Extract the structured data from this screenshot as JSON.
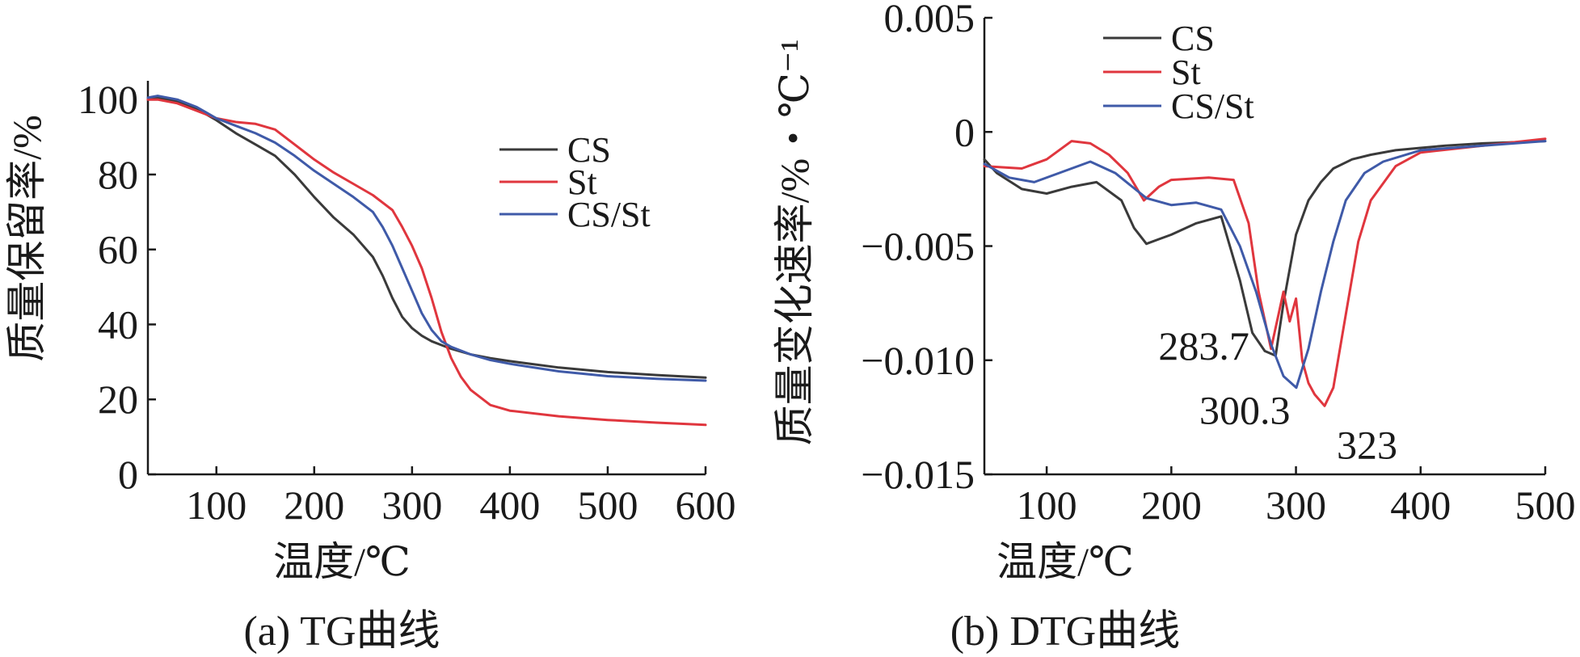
{
  "colors": {
    "CS": "#3a3a3a",
    "St": "#e0363e",
    "CS/St": "#3f5aa8"
  },
  "chart_data": [
    {
      "type": "line",
      "caption": "(a) TG曲线",
      "xlabel": "温度/℃",
      "ylabel": "质量保留率/%",
      "xlim": [
        30,
        600
      ],
      "ylim": [
        0,
        105
      ],
      "xticks": [
        100,
        200,
        300,
        400,
        500,
        600
      ],
      "yticks": [
        0,
        20,
        40,
        60,
        80,
        100
      ],
      "legend": "right",
      "series": [
        {
          "name": "CS",
          "color_key": "CS",
          "x": [
            30,
            40,
            60,
            80,
            100,
            120,
            140,
            160,
            180,
            200,
            220,
            240,
            260,
            270,
            280,
            290,
            300,
            310,
            320,
            330,
            340,
            360,
            380,
            400,
            450,
            500,
            550,
            600
          ],
          "y": [
            100,
            100.5,
            99.5,
            97.5,
            94.5,
            91,
            88,
            85,
            80,
            74,
            68.5,
            64,
            58,
            53,
            47,
            42,
            39,
            37,
            35.5,
            34.5,
            33.5,
            32,
            31,
            30.2,
            28.5,
            27.3,
            26.5,
            25.8
          ]
        },
        {
          "name": "St",
          "color_key": "St",
          "x": [
            30,
            40,
            60,
            80,
            100,
            120,
            140,
            160,
            180,
            200,
            220,
            240,
            260,
            280,
            290,
            300,
            310,
            320,
            330,
            340,
            350,
            360,
            380,
            400,
            450,
            500,
            550,
            600
          ],
          "y": [
            100,
            100,
            99,
            97,
            95,
            94,
            93.5,
            92,
            88,
            84,
            80.5,
            77.5,
            74.5,
            70.5,
            66,
            61,
            55,
            47,
            38,
            31,
            26,
            22.5,
            18.5,
            17,
            15.5,
            14.5,
            13.8,
            13.2
          ]
        },
        {
          "name": "CS/St",
          "color_key": "CS/St",
          "x": [
            30,
            40,
            60,
            80,
            100,
            120,
            140,
            160,
            180,
            200,
            220,
            240,
            260,
            270,
            280,
            290,
            300,
            310,
            320,
            330,
            340,
            360,
            380,
            400,
            450,
            500,
            550,
            600
          ],
          "y": [
            100.5,
            101,
            100,
            98,
            95,
            93,
            91,
            88.5,
            85,
            81,
            77.5,
            74,
            70,
            66,
            61,
            55,
            49,
            43,
            38.5,
            35.5,
            34,
            32,
            30.5,
            29.5,
            27.5,
            26.2,
            25.5,
            25
          ]
        }
      ]
    },
    {
      "type": "line",
      "caption": "(b) DTG曲线",
      "xlabel": "温度/℃",
      "ylabel": "质量变化速率/%・℃⁻¹",
      "xlim": [
        50,
        500
      ],
      "ylim": [
        -0.015,
        0.005
      ],
      "xticks": [
        100,
        200,
        300,
        400,
        500
      ],
      "yticks": [
        0.005,
        0,
        -0.005,
        -0.01,
        -0.015
      ],
      "ytick_labels": [
        "0.005",
        "0",
        "−0.005",
        "−0.010",
        "−0.015"
      ],
      "legend": "top-left",
      "annotations": [
        {
          "text": "283.7",
          "x": 283.7,
          "y": -0.0098
        },
        {
          "text": "300.3",
          "x": 300.3,
          "y": -0.0112
        },
        {
          "text": "323",
          "x": 323,
          "y": -0.012
        }
      ],
      "series": [
        {
          "name": "CS",
          "color_key": "CS",
          "x": [
            50,
            60,
            80,
            100,
            120,
            140,
            160,
            170,
            180,
            190,
            200,
            220,
            240,
            255,
            265,
            275,
            283.7,
            290,
            300,
            310,
            320,
            330,
            345,
            360,
            380,
            400,
            420,
            450,
            500
          ],
          "y": [
            -0.0012,
            -0.0018,
            -0.0025,
            -0.0027,
            -0.0024,
            -0.0022,
            -0.003,
            -0.0042,
            -0.0049,
            -0.0047,
            -0.0045,
            -0.004,
            -0.0037,
            -0.0065,
            -0.0088,
            -0.0096,
            -0.0098,
            -0.0075,
            -0.0045,
            -0.003,
            -0.0022,
            -0.0016,
            -0.0012,
            -0.001,
            -0.0008,
            -0.0007,
            -0.0006,
            -0.0005,
            -0.0004
          ]
        },
        {
          "name": "St",
          "color_key": "St",
          "x": [
            50,
            80,
            100,
            120,
            135,
            150,
            165,
            178,
            190,
            200,
            230,
            250,
            262,
            270,
            280,
            290,
            295,
            300,
            305,
            310,
            315,
            323,
            330,
            340,
            350,
            360,
            380,
            400,
            450,
            500
          ],
          "y": [
            -0.0015,
            -0.0016,
            -0.0012,
            -0.0004,
            -0.0005,
            -0.001,
            -0.0018,
            -0.003,
            -0.0024,
            -0.0021,
            -0.002,
            -0.0021,
            -0.004,
            -0.007,
            -0.0095,
            -0.007,
            -0.0083,
            -0.0073,
            -0.01,
            -0.011,
            -0.0115,
            -0.012,
            -0.0112,
            -0.008,
            -0.0048,
            -0.003,
            -0.0015,
            -0.0009,
            -0.0006,
            -0.0003
          ]
        },
        {
          "name": "CS/St",
          "color_key": "CS/St",
          "x": [
            50,
            70,
            90,
            110,
            135,
            155,
            180,
            200,
            220,
            240,
            255,
            268,
            280,
            290,
            300.3,
            310,
            320,
            330,
            340,
            355,
            370,
            400,
            450,
            500
          ],
          "y": [
            -0.0014,
            -0.002,
            -0.0022,
            -0.0018,
            -0.0013,
            -0.0018,
            -0.0029,
            -0.0032,
            -0.0031,
            -0.0034,
            -0.005,
            -0.007,
            -0.0093,
            -0.0107,
            -0.0112,
            -0.0095,
            -0.007,
            -0.0048,
            -0.003,
            -0.0018,
            -0.0013,
            -0.0008,
            -0.0006,
            -0.0004
          ]
        }
      ]
    }
  ]
}
